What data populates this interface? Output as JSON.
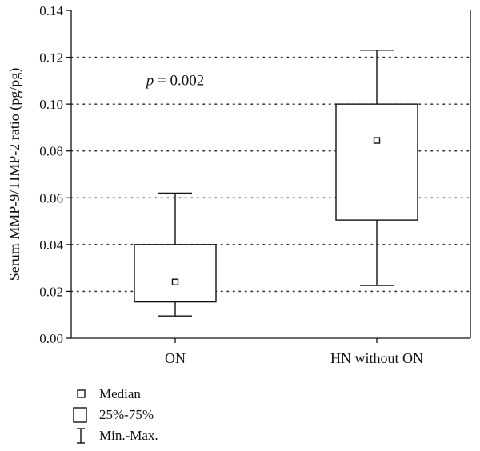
{
  "chart_data": {
    "type": "box",
    "ylabel": "Serum MMP-9/TIMP-2 ratio (pg/pg)",
    "ylim": [
      0,
      0.14
    ],
    "yticks": [
      "0.00",
      "0.02",
      "0.04",
      "0.06",
      "0.08",
      "0.10",
      "0.12",
      "0.14"
    ],
    "ytick_values": [
      0,
      0.02,
      0.04,
      0.06,
      0.08,
      0.1,
      0.12,
      0.14
    ],
    "grid": "horizontal-dotted",
    "categories": [
      "ON",
      "HN without ON"
    ],
    "boxes": [
      {
        "category": "ON",
        "min": 0.0095,
        "q1": 0.0155,
        "median": 0.024,
        "q3": 0.04,
        "max": 0.062
      },
      {
        "category": "HN without ON",
        "min": 0.0225,
        "q1": 0.0505,
        "median": 0.0845,
        "q3": 0.1,
        "max": 0.123
      }
    ],
    "annotation": {
      "italic": "p",
      "text": " = 0.002",
      "x_category": 0,
      "y": 0.108
    },
    "legend": {
      "placement": "bottom-left",
      "items": [
        {
          "symbol": "median-marker",
          "label": "Median"
        },
        {
          "symbol": "box",
          "label": "25%-75%"
        },
        {
          "symbol": "whisker",
          "label": "Min.-Max."
        }
      ]
    }
  }
}
